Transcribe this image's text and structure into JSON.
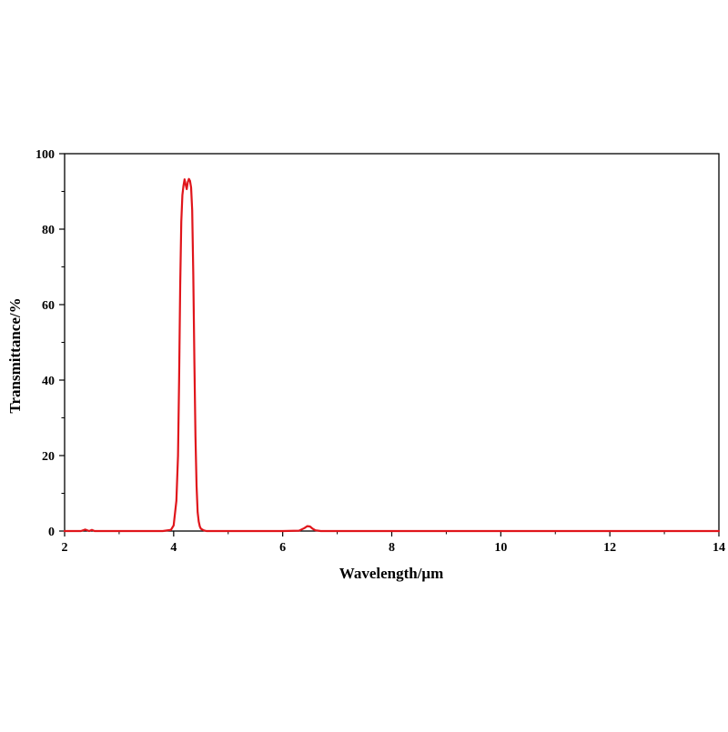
{
  "chart_data": {
    "type": "line",
    "title": "",
    "xlabel": "Wavelength/μm",
    "ylabel": "Transmittance/%",
    "xlim": [
      2,
      14
    ],
    "ylim": [
      0,
      100
    ],
    "x_ticks": [
      2,
      4,
      6,
      8,
      10,
      12,
      14
    ],
    "y_ticks": [
      0,
      20,
      40,
      60,
      80,
      100
    ],
    "grid": false,
    "legend": "none",
    "series": [
      {
        "color": "#e0151b",
        "x": [
          2.0,
          2.3,
          2.38,
          2.45,
          2.5,
          2.55,
          2.6,
          3.0,
          3.5,
          3.8,
          3.95,
          4.0,
          4.05,
          4.08,
          4.1,
          4.12,
          4.14,
          4.16,
          4.18,
          4.2,
          4.22,
          4.24,
          4.26,
          4.28,
          4.3,
          4.32,
          4.34,
          4.36,
          4.38,
          4.4,
          4.42,
          4.44,
          4.46,
          4.48,
          4.5,
          4.55,
          4.6,
          4.7,
          4.8,
          5.0,
          5.5,
          6.0,
          6.3,
          6.4,
          6.45,
          6.5,
          6.55,
          6.6,
          6.7,
          7.0,
          8.0,
          10.0,
          12.0,
          14.0
        ],
        "y": [
          0,
          0,
          0.4,
          0,
          0.3,
          0,
          0,
          0,
          0,
          0,
          0.3,
          1.5,
          8,
          20,
          40,
          65,
          82,
          89,
          91.5,
          93.2,
          91.8,
          90.6,
          92.5,
          93.3,
          92.8,
          91,
          85,
          68,
          45,
          25,
          12,
          5,
          2.5,
          1.2,
          0.6,
          0.2,
          0,
          0,
          0,
          0,
          0,
          0,
          0.1,
          0.8,
          1.3,
          1.2,
          0.6,
          0.2,
          0,
          0,
          0,
          0,
          0,
          0
        ]
      }
    ]
  }
}
